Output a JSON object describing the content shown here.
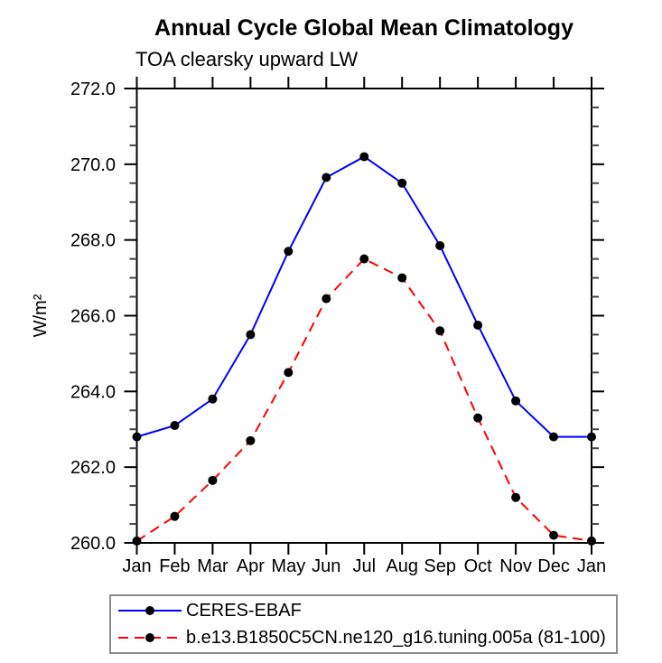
{
  "chart_data": {
    "type": "line",
    "title": "Annual Cycle Global Mean Climatology",
    "subtitle": "TOA clearsky upward LW",
    "ylabel": "W/m²",
    "xlabel": "",
    "ylim": [
      260.0,
      272.0
    ],
    "yticks": {
      "values": [
        260,
        262,
        264,
        266,
        268,
        270,
        272
      ],
      "labels": [
        "260.0",
        "262.0",
        "264.0",
        "266.0",
        "268.0",
        "270.0",
        "272.0"
      ],
      "major_step": 2.0,
      "minor_step": 0.5
    },
    "categories": [
      "Jan",
      "Feb",
      "Mar",
      "Apr",
      "May",
      "Jun",
      "Jul",
      "Aug",
      "Sep",
      "Oct",
      "Nov",
      "Dec",
      "Jan"
    ],
    "series": [
      {
        "name": "CERES-EBAF",
        "color": "#0000ff",
        "line_style": "solid",
        "marker": "filled-circle",
        "marker_color": "#000000",
        "values": [
          262.8,
          263.1,
          263.8,
          265.5,
          267.7,
          269.65,
          270.2,
          269.5,
          267.85,
          265.75,
          263.75,
          262.8,
          262.8
        ]
      },
      {
        "name": "b.e13.B1850C5CN.ne120_g16.tuning.005a (81-100)",
        "color": "#ff0000",
        "line_style": "dashed",
        "marker": "filled-circle",
        "marker_color": "#000000",
        "values": [
          260.05,
          260.7,
          261.65,
          262.7,
          264.5,
          266.45,
          267.5,
          267.0,
          265.6,
          263.3,
          261.2,
          260.2,
          260.05
        ]
      }
    ],
    "grid": false,
    "legend_position": "bottom",
    "axis_color": "#000000",
    "minor_tick_color": "#444444"
  }
}
